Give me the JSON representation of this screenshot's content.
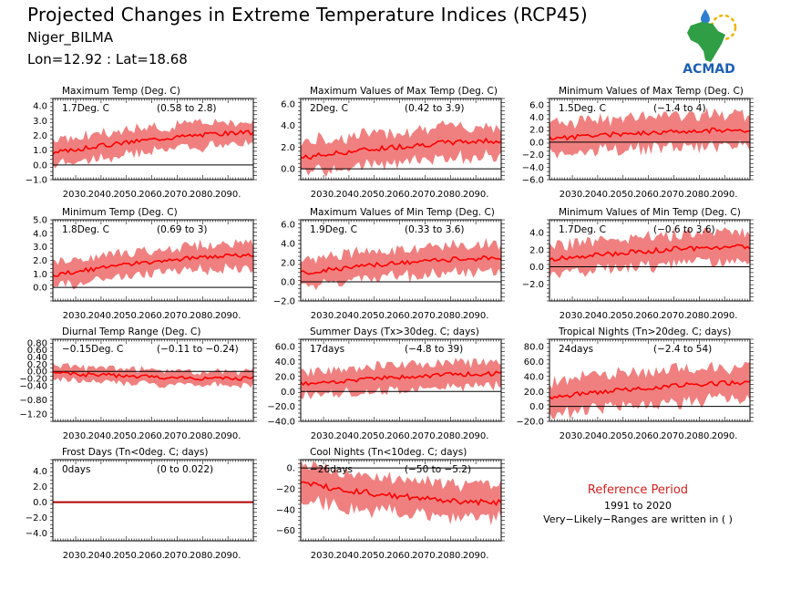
{
  "header": {
    "title": "Projected Changes in Extreme Temperature Indices (RCP45)",
    "station": "Niger_BILMA",
    "coords": "Lon=12.92 : Lat=18.68"
  },
  "logo": {
    "text": "ACMAD",
    "icon": "africa-map-logo-icon",
    "colors": {
      "africa": "#2f9e44",
      "text": "#1c5fb5",
      "drop": "#2f7fd1",
      "sun": "#f0b400"
    }
  },
  "reference": {
    "title": "Reference Period",
    "period": "1991 to 2020",
    "note": "Very−Likely−Ranges are written in ( )"
  },
  "colors": {
    "band": "#f08080",
    "line": "#ff0000",
    "frost_line": "#b00000"
  },
  "chart_data": [
    {
      "id": "txmean",
      "type": "area",
      "title": "Maximum Temp (Deg. C)",
      "mean_label": "1.7Deg. C",
      "range_label": "(0.58 to 2.8)",
      "x_range": [
        2021,
        2100
      ],
      "ylim": [
        -1,
        4.5
      ],
      "yticks": [
        4.0,
        3.0,
        2.0,
        1.0,
        0.0,
        -1.0
      ],
      "tick_decimals": 1,
      "xticks": [
        "2030.",
        "2040.",
        "2050.",
        "2060.",
        "2070.",
        "2080.",
        "2090."
      ],
      "start": 0.8,
      "end": 2.2,
      "spread": 0.9,
      "noise": 0.15,
      "seed": 3
    },
    {
      "id": "txx",
      "type": "area",
      "title": "Maximum Values of Max Temp (Deg. C)",
      "mean_label": "2Deg. C",
      "range_label": "(0.42 to 3.9)",
      "x_range": [
        2021,
        2100
      ],
      "ylim": [
        -1,
        6.5
      ],
      "yticks": [
        6.0,
        4.0,
        2.0,
        0.0
      ],
      "tick_decimals": 1,
      "xticks": [
        "2030.",
        "2040.",
        "2050.",
        "2060.",
        "2070.",
        "2080.",
        "2090."
      ],
      "start": 1.0,
      "end": 2.6,
      "spread": 1.6,
      "noise": 0.25,
      "seed": 7
    },
    {
      "id": "txn",
      "type": "area",
      "title": "Minimum Values of Max Temp (Deg. C)",
      "mean_label": "1.5Deg. C",
      "range_label": "(−1.4 to 4)",
      "x_range": [
        2021,
        2100
      ],
      "ylim": [
        -6,
        7
      ],
      "yticks": [
        6.0,
        4.0,
        2.0,
        0.0,
        -2.0,
        -4.0,
        -6.0
      ],
      "tick_decimals": 1,
      "xticks": [
        "2030.",
        "2040.",
        "2050.",
        "2060.",
        "2070.",
        "2080.",
        "2090."
      ],
      "start": 0.6,
      "end": 2.0,
      "spread": 2.8,
      "noise": 0.4,
      "seed": 11
    },
    {
      "id": "tnmean",
      "type": "area",
      "title": "Minimum Temp (Deg. C)",
      "mean_label": "1.8Deg. C",
      "range_label": "(0.69 to 3)",
      "x_range": [
        2021,
        2100
      ],
      "ylim": [
        -1,
        5
      ],
      "yticks": [
        5.0,
        4.0,
        3.0,
        2.0,
        1.0,
        0.0
      ],
      "tick_decimals": 1,
      "xticks": [
        "2030.",
        "2040.",
        "2050.",
        "2060.",
        "2070.",
        "2080.",
        "2090."
      ],
      "start": 0.9,
      "end": 2.4,
      "spread": 1.0,
      "noise": 0.15,
      "seed": 13
    },
    {
      "id": "tnx",
      "type": "area",
      "title": "Maximum Values of Min Temp (Deg. C)",
      "mean_label": "1.9Deg. C",
      "range_label": "(0.33 to 3.6)",
      "x_range": [
        2021,
        2100
      ],
      "ylim": [
        -2,
        6.5
      ],
      "yticks": [
        6.0,
        4.0,
        2.0,
        0.0,
        -2.0
      ],
      "tick_decimals": 1,
      "xticks": [
        "2030.",
        "2040.",
        "2050.",
        "2060.",
        "2070.",
        "2080.",
        "2090."
      ],
      "start": 0.9,
      "end": 2.5,
      "spread": 1.6,
      "noise": 0.25,
      "seed": 17
    },
    {
      "id": "tnn",
      "type": "area",
      "title": "Minimum Values of Min Temp (Deg. C)",
      "mean_label": "1.7Deg. C",
      "range_label": "(−0.6 to 3.6)",
      "x_range": [
        2021,
        2100
      ],
      "ylim": [
        -4,
        5.5
      ],
      "yticks": [
        4.0,
        2.0,
        0.0,
        -2.0
      ],
      "tick_decimals": 1,
      "xticks": [
        "2030.",
        "2040.",
        "2050.",
        "2060.",
        "2070.",
        "2080.",
        "2090."
      ],
      "start": 0.8,
      "end": 2.4,
      "spread": 1.9,
      "noise": 0.3,
      "seed": 19
    },
    {
      "id": "dtr",
      "type": "area",
      "title": "Diurnal Temp Range (Deg. C)",
      "mean_label": "−0.15Deg. C",
      "range_label": "(−0.11 to −0.24)",
      "x_range": [
        2021,
        2100
      ],
      "ylim": [
        -1.4,
        0.9
      ],
      "yticks": [
        0.8,
        0.6,
        0.4,
        0.2,
        0.0,
        -0.2,
        -0.4,
        -0.8,
        -1.2
      ],
      "tick_decimals": 2,
      "xticks": [
        "2030.",
        "2040.",
        "2050.",
        "2060.",
        "2070.",
        "2080.",
        "2090."
      ],
      "start": -0.05,
      "end": -0.2,
      "spread": 0.22,
      "noise": 0.06,
      "seed": 23
    },
    {
      "id": "su",
      "type": "area",
      "title": "Summer Days (Tx>30deg. C; days)",
      "mean_label": "17days",
      "range_label": "(−4.8 to 39)",
      "x_range": [
        2021,
        2100
      ],
      "ylim": [
        -40,
        70
      ],
      "yticks": [
        60,
        40,
        20,
        0,
        -20,
        -40
      ],
      "tick_decimals": 1,
      "xticks": [
        "2030.",
        "2040.",
        "2050.",
        "2060.",
        "2070.",
        "2080.",
        "2090."
      ],
      "start": 10,
      "end": 24,
      "spread": 18,
      "noise": 3,
      "seed": 29
    },
    {
      "id": "tr",
      "type": "area",
      "title": "Tropical Nights (Tn>20deg. C; days)",
      "mean_label": "24days",
      "range_label": "(−2.4 to 54)",
      "x_range": [
        2021,
        2100
      ],
      "ylim": [
        -20,
        90
      ],
      "yticks": [
        80,
        60,
        40,
        20,
        0,
        -20
      ],
      "tick_decimals": 1,
      "xticks": [
        "2030.",
        "2040.",
        "2050.",
        "2060.",
        "2070.",
        "2080.",
        "2090."
      ],
      "start": 12,
      "end": 32,
      "spread": 24,
      "noise": 3,
      "seed": 31
    },
    {
      "id": "fd",
      "type": "area",
      "title": "Frost Days (Tn<0deg. C; days)",
      "mean_label": "0days",
      "range_label": "(0 to 0.022)",
      "x_range": [
        2021,
        2100
      ],
      "ylim": [
        -5,
        5.5
      ],
      "yticks": [
        4.0,
        2.0,
        0.0,
        -2.0,
        -4.0
      ],
      "tick_decimals": 1,
      "xticks": [
        "2030.",
        "2040.",
        "2050.",
        "2060.",
        "2070.",
        "2080.",
        "2090."
      ],
      "start": 0,
      "end": 0,
      "spread": 0,
      "noise": 0,
      "seed": 1
    },
    {
      "id": "tn10",
      "type": "area",
      "title": "Cool Nights (Tn<10deg. C; days)",
      "mean_label": "−26days",
      "range_label": "(−50 to −5.2)",
      "x_range": [
        2021,
        2100
      ],
      "ylim": [
        -70,
        8
      ],
      "yticks": [
        0,
        -20,
        -40,
        -60
      ],
      "tick_decimals": 0,
      "xticks": [
        "2030.",
        "2040.",
        "2050.",
        "2060.",
        "2070.",
        "2080.",
        "2090."
      ],
      "start": -15,
      "end": -33,
      "spread": 18,
      "noise": 3,
      "seed": 37
    }
  ]
}
